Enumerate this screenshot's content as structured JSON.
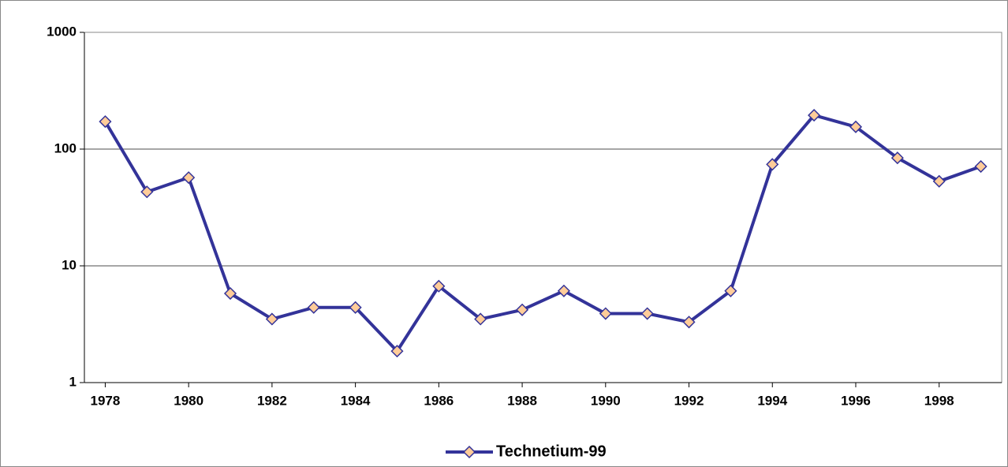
{
  "chart_data": {
    "type": "line",
    "log_y": true,
    "grid": true,
    "legend": "bottom",
    "x": [
      1978,
      1979,
      1980,
      1981,
      1982,
      1983,
      1984,
      1985,
      1986,
      1987,
      1988,
      1989,
      1990,
      1991,
      1992,
      1993,
      1994,
      1995,
      1996,
      1997,
      1998,
      1999
    ],
    "xlim": [
      1977.5,
      1999.5
    ],
    "xticks": [
      1978,
      1980,
      1982,
      1984,
      1986,
      1988,
      1990,
      1992,
      1994,
      1996,
      1998
    ],
    "ylim": [
      1,
      1000
    ],
    "yticks": [
      1,
      10,
      100,
      1000
    ],
    "series": [
      {
        "name": "Technetium-99",
        "color": "#333399",
        "marker_color": "#ffcc99",
        "values": [
          172,
          43,
          57,
          5.8,
          3.5,
          4.4,
          4.4,
          1.86,
          6.7,
          3.5,
          4.2,
          6.1,
          3.9,
          3.9,
          3.3,
          6.1,
          74,
          195,
          155,
          84,
          53,
          71
        ]
      }
    ]
  }
}
